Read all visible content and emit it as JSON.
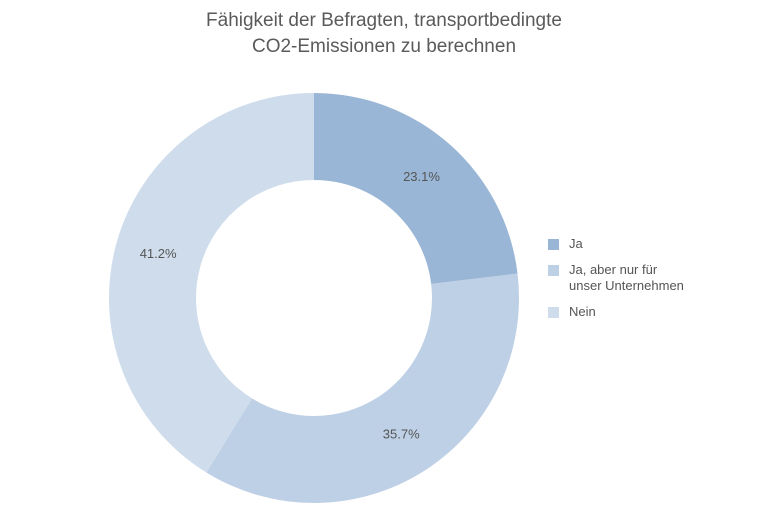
{
  "chart_data": {
    "type": "pie",
    "variant": "donut",
    "title": [
      "Fähigkeit der Befragten, transportbedingte",
      "CO2-Emissionen zu berechnen"
    ],
    "categories": [
      "Ja",
      "Ja, aber nur für unser Unternehmen",
      "Nein"
    ],
    "legend_lines": [
      [
        "Ja"
      ],
      [
        "Ja, aber nur für",
        "unser Unternehmen"
      ],
      [
        "Nein"
      ]
    ],
    "values": [
      23.1,
      35.7,
      41.2
    ],
    "data_labels": [
      "23.1%",
      "35.7%",
      "41.2%"
    ],
    "colors": [
      "#9ab6d6",
      "#bed0e6",
      "#cedcec"
    ],
    "legend_position": "right"
  }
}
